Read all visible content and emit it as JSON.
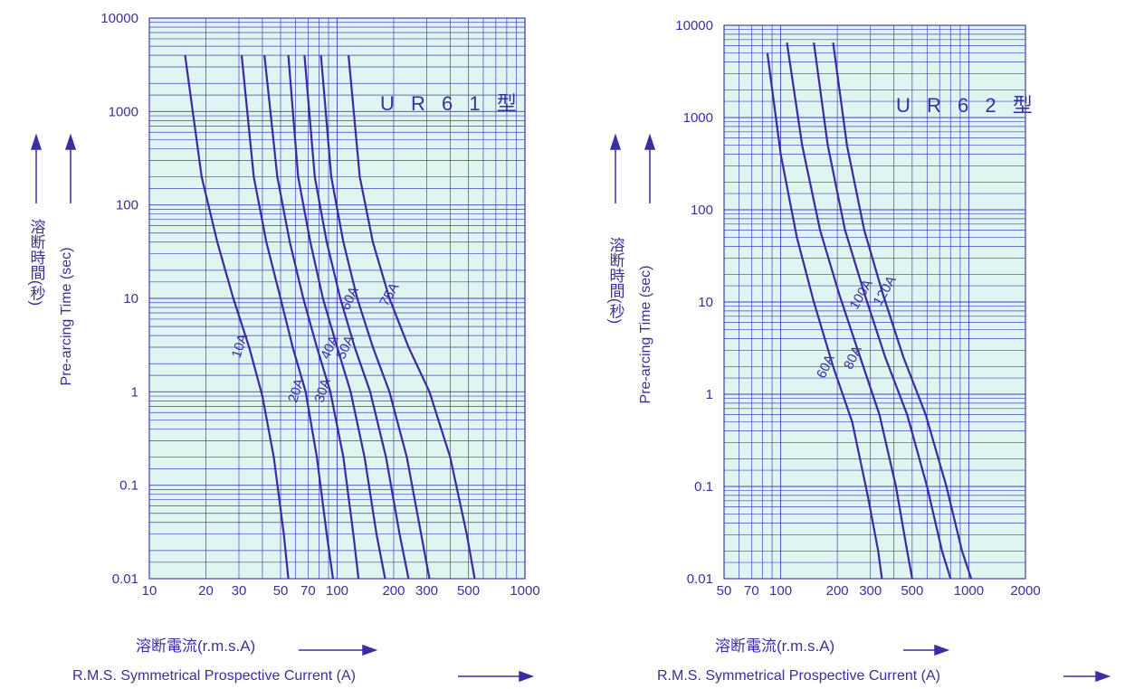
{
  "chart_data": [
    {
      "type": "line",
      "title": "U R 6 1 型",
      "xscale": "log",
      "yscale": "log",
      "xlim": [
        10,
        1000
      ],
      "ylim": [
        0.01,
        10000
      ],
      "x_tick_labels": [
        "10",
        "20",
        "30",
        "50",
        "70",
        "100",
        "200",
        "300",
        "500",
        "1000"
      ],
      "y_tick_labels": [
        "10000",
        "1000",
        "100",
        "10",
        "1",
        "0.1",
        "0.01"
      ],
      "xlabel_jp": "溶断電流(r.m.s.A)",
      "xlabel_en": "R.M.S. Symmetrical Prospective Current (A)",
      "ylabel_jp": "溶断時間(秒)",
      "ylabel_en": "Pre-arcing Time (sec)",
      "grid": true,
      "series": [
        {
          "name": "10A",
          "x": [
            15.5,
            19,
            23,
            28,
            34,
            40,
            46,
            52,
            55
          ],
          "y": [
            4000,
            200,
            40,
            10,
            3,
            0.9,
            0.2,
            0.03,
            0.01
          ]
        },
        {
          "name": "20A",
          "x": [
            31,
            36,
            42,
            50,
            58,
            68,
            78,
            88,
            95
          ],
          "y": [
            4000,
            200,
            40,
            10,
            3,
            1,
            0.2,
            0.03,
            0.01
          ]
        },
        {
          "name": "30A",
          "x": [
            41,
            48,
            56,
            66,
            78,
            92,
            108,
            122,
            130
          ],
          "y": [
            4000,
            200,
            40,
            10,
            3,
            1,
            0.2,
            0.03,
            0.01
          ]
        },
        {
          "name": "40A",
          "x": [
            55,
            62,
            72,
            84,
            100,
            118,
            140,
            162,
            180
          ],
          "y": [
            4000,
            200,
            40,
            10,
            3,
            1,
            0.2,
            0.03,
            0.01
          ]
        },
        {
          "name": "50A",
          "x": [
            67,
            76,
            88,
            104,
            124,
            150,
            182,
            215,
            240
          ],
          "y": [
            4000,
            200,
            40,
            10,
            3,
            1,
            0.2,
            0.03,
            0.01
          ]
        },
        {
          "name": "60A",
          "x": [
            82,
            93,
            108,
            128,
            155,
            190,
            235,
            280,
            310
          ],
          "y": [
            4000,
            200,
            40,
            10,
            3,
            1,
            0.2,
            0.03,
            0.01
          ]
        },
        {
          "name": "75A",
          "x": [
            115,
            132,
            155,
            190,
            240,
            310,
            400,
            490,
            540
          ],
          "y": [
            4000,
            200,
            40,
            10,
            3,
            1,
            0.2,
            0.03,
            0.01
          ]
        }
      ]
    },
    {
      "type": "line",
      "title": "U R 6 2 型",
      "xscale": "log",
      "yscale": "log",
      "xlim": [
        50,
        2000
      ],
      "ylim": [
        0.01,
        10000
      ],
      "x_tick_labels": [
        "50",
        "70",
        "100",
        "200",
        "300",
        "500",
        "1000",
        "2000"
      ],
      "y_tick_labels": [
        "10000",
        "1000",
        "100",
        "10",
        "1",
        "0.1",
        "0.01"
      ],
      "xlabel_jp": "溶断電流(r.m.s.A)",
      "xlabel_en": "R.M.S. Symmetrical Prospective Current (A)",
      "ylabel_jp": "溶断時間(秒)",
      "ylabel_en": "Pre-arcing Time (sec)",
      "grid": true,
      "series": [
        {
          "name": "60A",
          "x": [
            85,
            100,
            122,
            150,
            190,
            240,
            290,
            330,
            345
          ],
          "y": [
            5000,
            400,
            50,
            10,
            2,
            0.5,
            0.08,
            0.02,
            0.01
          ]
        },
        {
          "name": "80A",
          "x": [
            108,
            130,
            162,
            205,
            265,
            335,
            410,
            470,
            500
          ],
          "y": [
            6500,
            500,
            60,
            12,
            2.5,
            0.6,
            0.1,
            0.02,
            0.01
          ]
        },
        {
          "name": "100A",
          "x": [
            150,
            178,
            220,
            280,
            360,
            470,
            600,
            720,
            800
          ],
          "y": [
            6500,
            500,
            60,
            12,
            2.5,
            0.6,
            0.1,
            0.02,
            0.01
          ]
        },
        {
          "name": "120A",
          "x": [
            190,
            225,
            278,
            350,
            450,
            590,
            760,
            920,
            1030
          ],
          "y": [
            6500,
            500,
            60,
            12,
            2.5,
            0.6,
            0.1,
            0.02,
            0.01
          ]
        }
      ]
    }
  ]
}
